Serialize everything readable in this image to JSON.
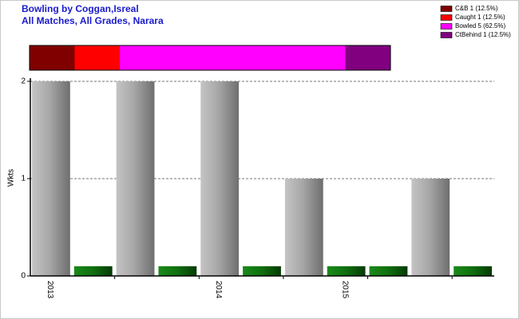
{
  "chart_data": [
    {
      "type": "proportion",
      "series": [
        {
          "name": "C&B 1 (12.5%)",
          "color": "#800000",
          "values": [
            1
          ]
        },
        {
          "name": "Caught 1 (12.5%)",
          "color": "#ff0000",
          "values": [
            1
          ]
        },
        {
          "name": "Bowled 5 (62.5%)",
          "color": "#ff00ff",
          "values": [
            5
          ]
        },
        {
          "name": "CtBehind 1 (12.5%)",
          "color": "#800080",
          "values": [
            1
          ]
        }
      ]
    },
    {
      "type": "bar",
      "title": "Bowling by Coggan,Isreal",
      "subtitle": "All Matches, All Grades, Narara",
      "ylabel": "Wkts",
      "categories": [
        "2013",
        null,
        null,
        null,
        "2014",
        null,
        null,
        "2015",
        null,
        null,
        null
      ],
      "series": [
        {
          "color": "#9a9a9a",
          "values": [
            2,
            null,
            2,
            null,
            2,
            null,
            1,
            null,
            null,
            1,
            null
          ]
        },
        {
          "color": "#0e6a0e",
          "values": [
            null,
            0.1,
            null,
            0.1,
            null,
            0.1,
            null,
            0.1,
            0.1,
            null,
            0.1
          ]
        }
      ],
      "ylim": [
        0,
        2
      ],
      "yticks": [
        0,
        1,
        2
      ],
      "grid": true
    }
  ]
}
